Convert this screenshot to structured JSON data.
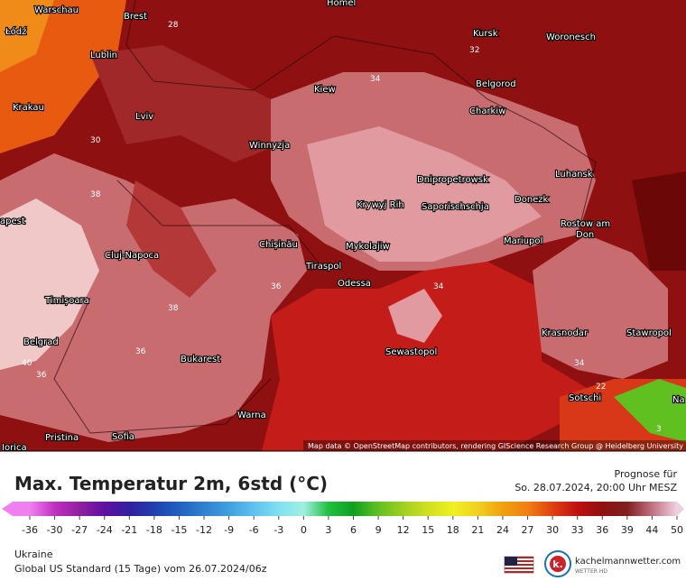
{
  "map": {
    "cities": [
      "Homel",
      "Warschau",
      "Brest",
      "Łódź",
      "Lublin",
      "Krakau",
      "Lviv",
      "Winnyzja",
      "Kiew",
      "Kursk",
      "Woronesch",
      "Belgorod",
      "Charkiw",
      "Dnipropetrowsk",
      "Luhansk",
      "Krywyj Rih",
      "Saporischschja",
      "Donezk",
      "Rostow am",
      "Don",
      "apest",
      "Chișinău",
      "Mykolajiw",
      "Mariupol",
      "Tiraspol",
      "Odessa",
      "Cluj-Napoca",
      "Timișoara",
      "Belgrad",
      "Bukarest",
      "Krasnodar",
      "Stawropol",
      "Sewastopol",
      "Sotschi",
      "Warna",
      "Sofia",
      "Pristina",
      "Iorica",
      "Na"
    ],
    "contour_labels": [
      28,
      32,
      34,
      30,
      38,
      36,
      34,
      34,
      22,
      40,
      36,
      38,
      36,
      3
    ],
    "attribution": "Map data © OpenStreetMap contributors, rendering GIScience Research Group @ Heidelberg University"
  },
  "header": {
    "title": "Max. Temperatur 2m, 6std (°C)",
    "forecast_label": "Prognose für",
    "forecast_time": "So. 28.07.2024, 20:00 Uhr MESZ"
  },
  "colorbar": {
    "ticks": [
      -36,
      -30,
      -27,
      -24,
      -21,
      -18,
      -15,
      -12,
      -9,
      -6,
      -3,
      0,
      3,
      6,
      9,
      12,
      15,
      18,
      21,
      24,
      27,
      30,
      33,
      36,
      39,
      44,
      50
    ],
    "colors": [
      "#f080f0",
      "#c030c0",
      "#9020a0",
      "#6010a0",
      "#3020a0",
      "#2040b0",
      "#2060c0",
      "#3080d0",
      "#40a0e0",
      "#60c0f0",
      "#80e0f0",
      "#a0f0e0",
      "#20c040",
      "#10a020",
      "#60c020",
      "#a0d020",
      "#d0e020",
      "#f0f020",
      "#f0d020",
      "#f0a010",
      "#f08010",
      "#e04010",
      "#c01010",
      "#901010",
      "#802020",
      "#c07080",
      "#f0d0e0"
    ]
  },
  "footer": {
    "region": "Ukraine",
    "model": "Global US Standard (15 Tage) vom 26.07.2024/06z",
    "brand": "kachelmannwetter.com",
    "brand_sub": "WETTER HD"
  }
}
